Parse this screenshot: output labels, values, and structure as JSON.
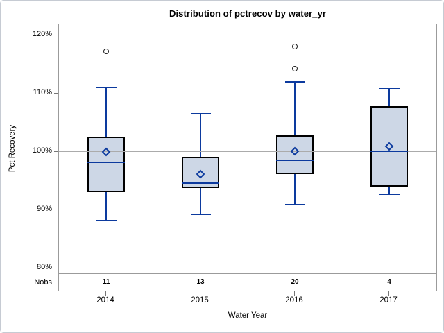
{
  "title": "Distribution of pctrecov by water_yr",
  "y_axis": {
    "label": "Pct Recovery"
  },
  "x_axis": {
    "label": "Water Year"
  },
  "nobs_row": {
    "label": "Nobs",
    "values": [
      "11",
      "13",
      "20",
      "4"
    ]
  },
  "chart_data": {
    "type": "boxplot",
    "title": "Distribution of pctrecov by water_yr",
    "xlabel": "Water Year",
    "ylabel": "Pct Recovery",
    "ylim": [
      79,
      122
    ],
    "grid": false,
    "legend": false,
    "reference_line_value": 100,
    "y_ticks": [
      {
        "label": "120%",
        "value": 120
      },
      {
        "label": "110%",
        "value": 110
      },
      {
        "label": "100%",
        "value": 100
      },
      {
        "label": "90%",
        "value": 90
      },
      {
        "label": "80%",
        "value": 80
      }
    ],
    "categories": [
      "2014",
      "2015",
      "2016",
      "2017"
    ],
    "groups": [
      {
        "category": "2014",
        "nobs": "11",
        "whisker_low": 88.1,
        "q1": 93.0,
        "median": 98.1,
        "q3": 102.5,
        "whisker_high": 110.9,
        "mean": 99.9,
        "outliers": [
          117.2
        ]
      },
      {
        "category": "2015",
        "nobs": "13",
        "whisker_low": 89.2,
        "q1": 93.7,
        "median": 94.5,
        "q3": 99.0,
        "whisker_high": 106.4,
        "mean": 96.1,
        "outliers": []
      },
      {
        "category": "2016",
        "nobs": "20",
        "whisker_low": 90.8,
        "q1": 96.1,
        "median": 98.5,
        "q3": 102.7,
        "whisker_high": 111.9,
        "mean": 100.0,
        "outliers": [
          114.2,
          118.0
        ]
      },
      {
        "category": "2017",
        "nobs": "4",
        "whisker_low": 92.6,
        "q1": 93.9,
        "median": 100.0,
        "q3": 107.7,
        "whisker_high": 110.7,
        "mean": 100.8,
        "outliers": []
      }
    ]
  },
  "colors": {
    "box_fill": "#cdd7e6",
    "box_border": "#000000",
    "line_blue": "#0c3a9e",
    "ref_line": "#ababab",
    "frame": "#9b9b9b",
    "tick": "#767676",
    "outlier": "#1a1a1a",
    "text": "#000000",
    "background": "#ffffff",
    "page_border": "#c6cbd3"
  }
}
